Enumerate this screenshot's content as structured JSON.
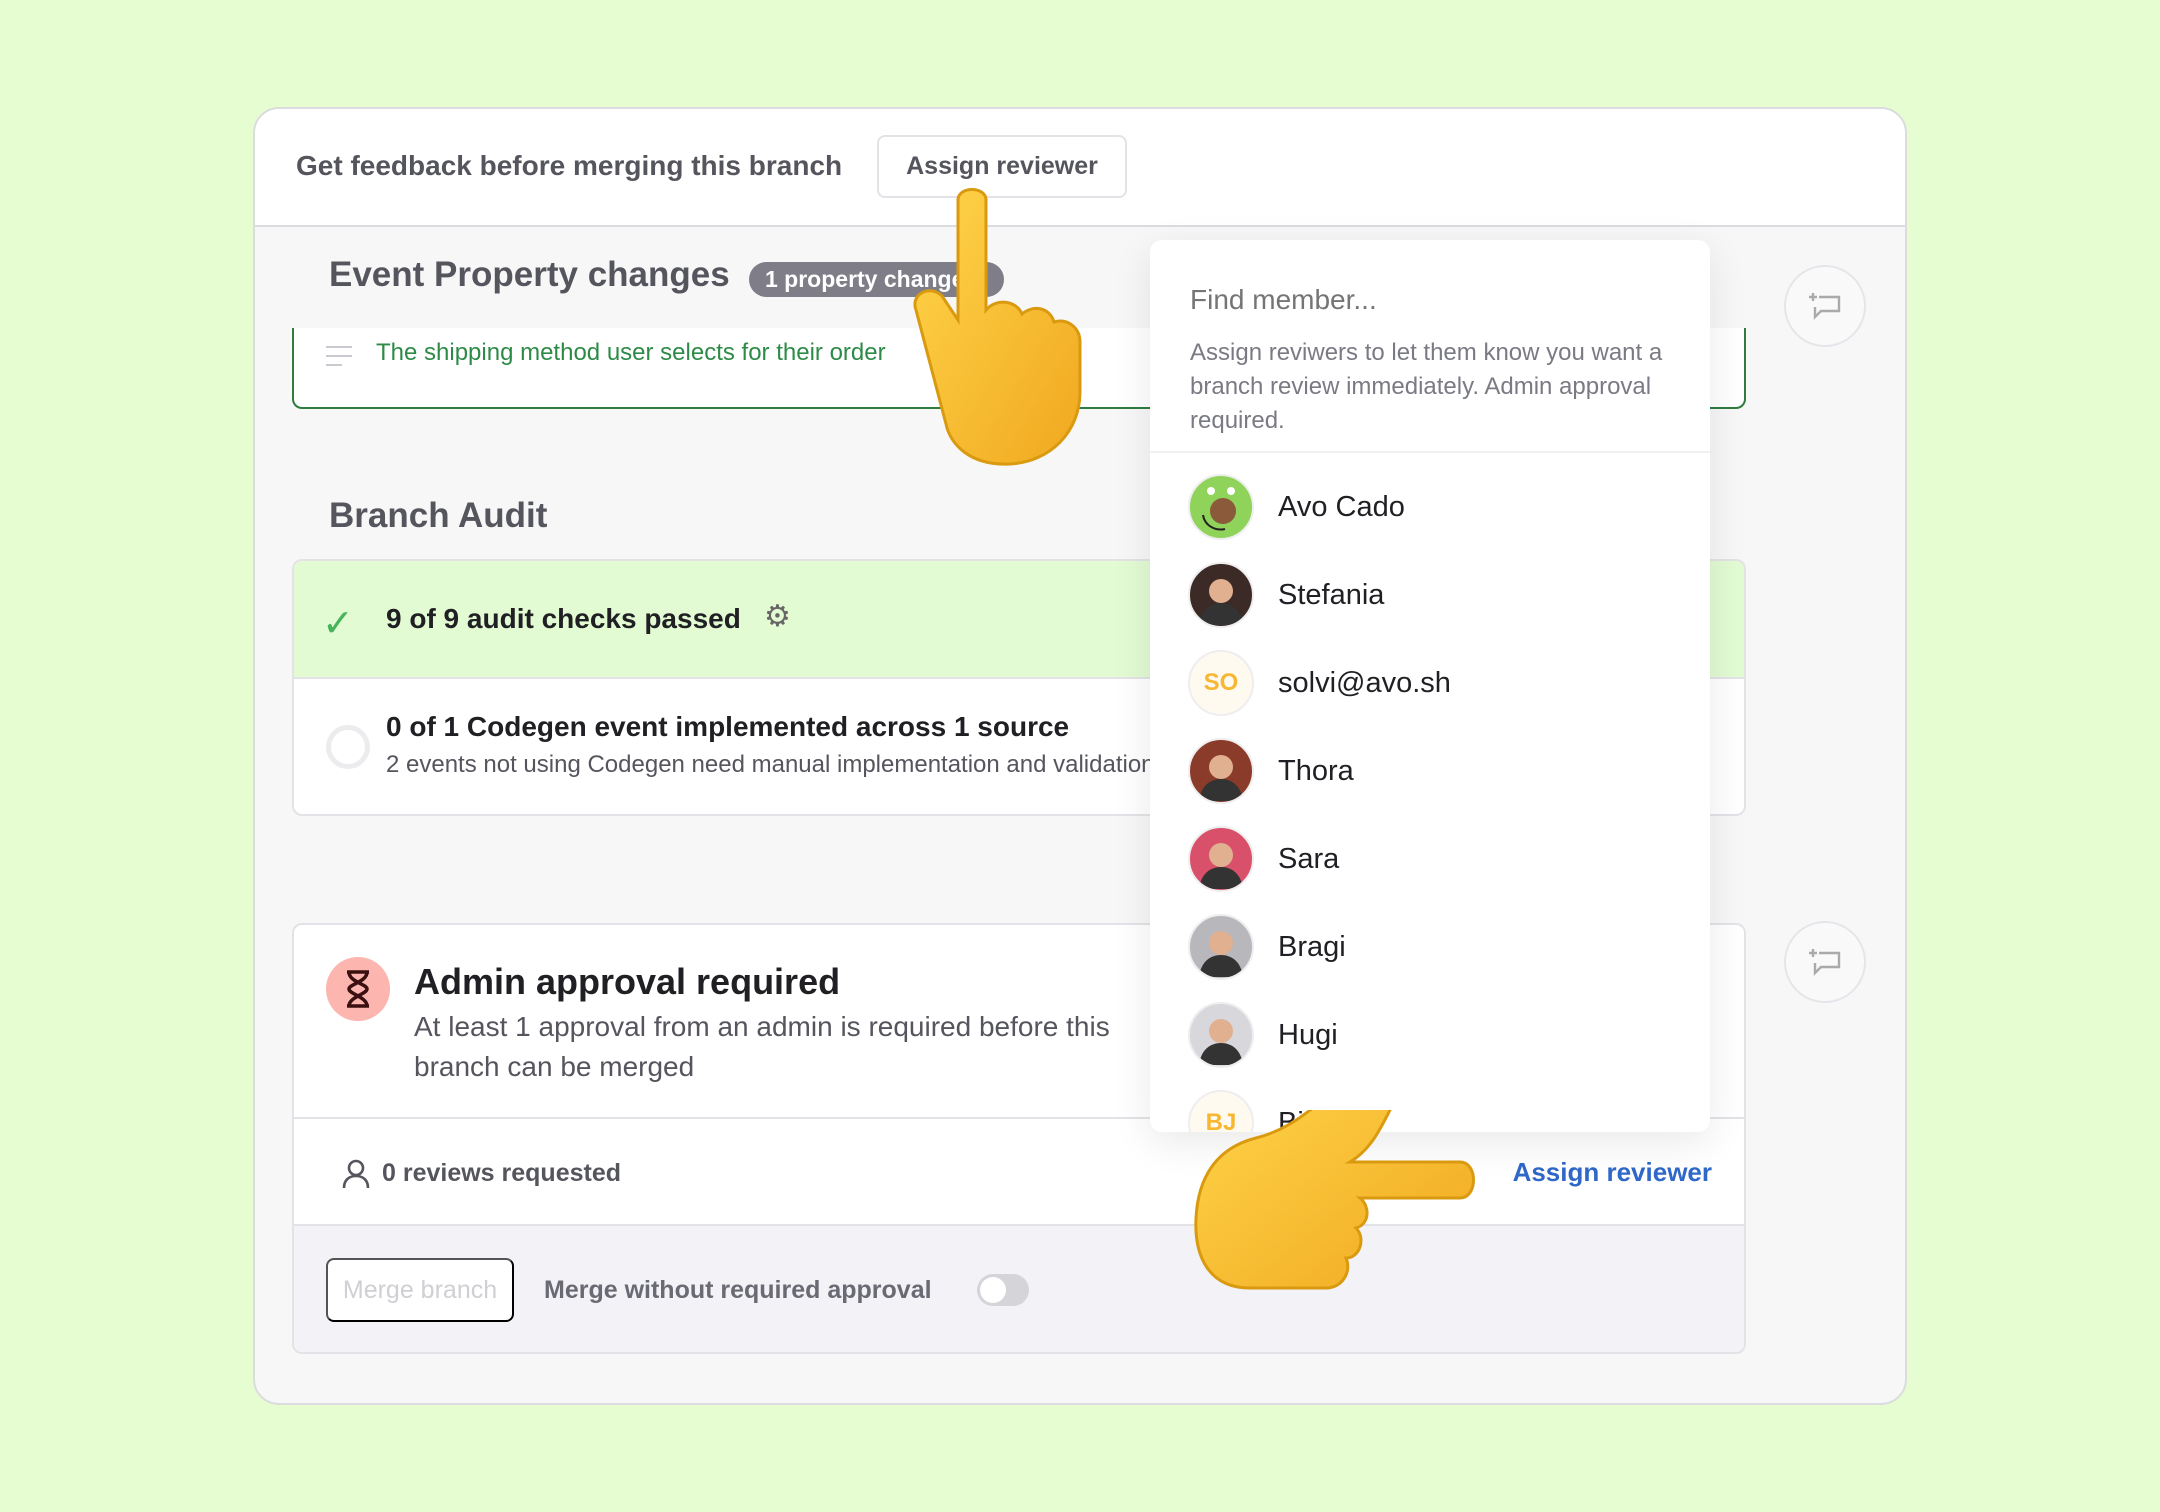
{
  "header": {
    "text": "Get feedback before merging this branch",
    "assign_button": "Assign reviewer"
  },
  "event_property": {
    "title": "Event Property changes",
    "badge": "1 property change",
    "description": "The shipping method user selects for their order"
  },
  "branch_audit": {
    "title": "Branch Audit",
    "passed": "9 of 9 audit checks passed",
    "codegen_title": "0 of 1 Codegen event implemented across 1 source",
    "codegen_desc": "2 events not using Codegen need manual implementation and validation"
  },
  "admin": {
    "title": "Admin approval required",
    "description": "At least 1 approval from an admin is required before this branch can be merged",
    "reviews": "0 reviews requested",
    "assign_link": "Assign reviewer",
    "merge_button": "Merge branch",
    "merge_without": "Merge without required approval",
    "merge_without_enabled": false
  },
  "dropdown": {
    "placeholder": "Find member...",
    "help": "Assign reviwers to let them know you want a branch review immediately. Admin approval required.",
    "members": [
      {
        "name": "Avo Cado",
        "avatar": "avocado",
        "color": "#8fd35a"
      },
      {
        "name": "Stefania",
        "avatar": "photo",
        "color": "#3b2a26"
      },
      {
        "name": "solvi@avo.sh",
        "avatar": "SO",
        "color": "#fffaf0"
      },
      {
        "name": "Thora",
        "avatar": "photo",
        "color": "#8a3b2a"
      },
      {
        "name": "Sara",
        "avatar": "photo",
        "color": "#d9506a"
      },
      {
        "name": "Bragi",
        "avatar": "photo",
        "color": "#b8b8bc"
      },
      {
        "name": "Hugi",
        "avatar": "photo",
        "color": "#d8d8dc"
      },
      {
        "name": "Bjössi",
        "avatar": "BJ",
        "color": "#fffaf0"
      }
    ]
  },
  "colors": {
    "background": "#e5fdd0",
    "accent_green": "#2e7d3e",
    "link": "#2f68c9",
    "pass_bg": "#e2fbd3"
  }
}
